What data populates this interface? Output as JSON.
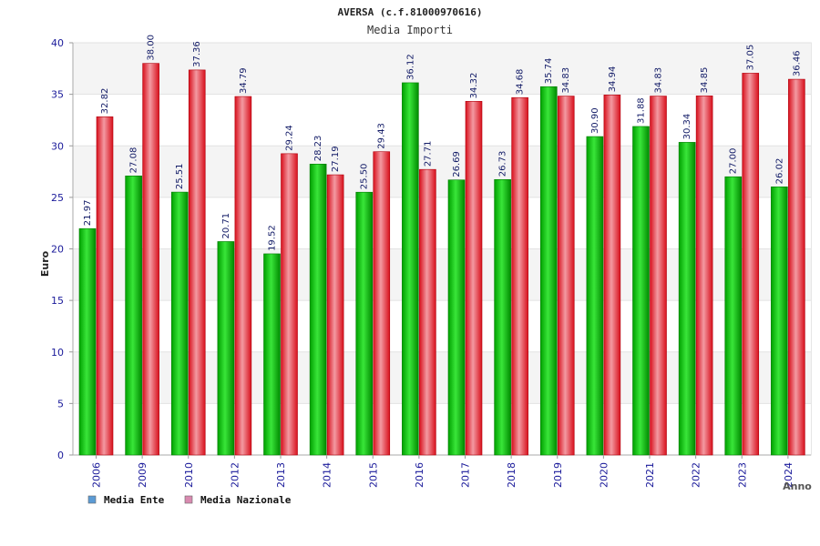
{
  "chart_data": {
    "type": "bar",
    "title": "AVERSA (c.f.81000970616)",
    "subtitle": "Media Importi",
    "xlabel": "Anno",
    "ylabel": "Euro",
    "ylim": [
      0,
      40
    ],
    "yticks": [
      0,
      5,
      10,
      15,
      20,
      25,
      30,
      35,
      40
    ],
    "grid": true,
    "legend_position": "bottom-left",
    "categories": [
      "2006",
      "2009",
      "2010",
      "2012",
      "2013",
      "2014",
      "2015",
      "2016",
      "2017",
      "2018",
      "2019",
      "2020",
      "2021",
      "2022",
      "2023",
      "2024"
    ],
    "series": [
      {
        "name": "Media Ente",
        "color": "#00b300",
        "legend_color": "#5b9bd5",
        "values": [
          21.97,
          27.08,
          25.51,
          20.71,
          19.52,
          28.23,
          25.5,
          36.12,
          26.69,
          26.73,
          35.74,
          30.9,
          31.88,
          30.34,
          27.0,
          26.02
        ],
        "labels": [
          "21.97",
          "27.08",
          "25.51",
          "20.71",
          "19.52",
          "28.23",
          "25.50",
          "36.12",
          "26.69",
          "26.73",
          "35.74",
          "30.90",
          "31.88",
          "30.34",
          "27.00",
          "26.02"
        ]
      },
      {
        "name": "Media Nazionale",
        "color": "#e8121f",
        "legend_color": "#d98ab0",
        "values": [
          32.82,
          38.0,
          37.36,
          34.79,
          29.24,
          27.19,
          29.43,
          27.71,
          34.32,
          34.68,
          34.83,
          34.94,
          34.83,
          34.85,
          37.05,
          36.46
        ],
        "labels": [
          "32.82",
          "38.00",
          "37.36",
          "34.79",
          "29.24",
          "27.19",
          "29.43",
          "27.71",
          "34.32",
          "34.68",
          "34.83",
          "34.94",
          "34.83",
          "34.85",
          "37.05",
          "36.46"
        ]
      }
    ]
  }
}
